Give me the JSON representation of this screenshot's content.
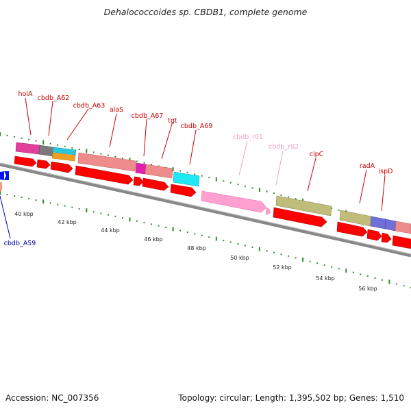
{
  "title": "Dehalococcoides sp. CBDB1, complete genome",
  "footer": {
    "accession": "Accession: NC_007356",
    "summary": "Topology: circular; Length: 1,395,502 bp; Genes: 1,510"
  },
  "colors": {
    "backbone": "#808080",
    "tick": "#2e8b2e",
    "gene_label": "#cc0000",
    "rna_label": "#f3a0c8",
    "blue_label": "#0000aa",
    "cds": "#ff0000",
    "rrna": "#ff9fcf"
  },
  "scale_labels": [
    "40 kbp",
    "42 kbp",
    "44 kbp",
    "46 kbp",
    "48 kbp",
    "50 kbp",
    "52 kbp",
    "54 kbp",
    "56 kbp"
  ],
  "gene_labels": [
    {
      "text": "holA",
      "color": "red"
    },
    {
      "text": "cbdb_A62",
      "color": "red"
    },
    {
      "text": "cbdb_A63",
      "color": "red"
    },
    {
      "text": "alaS",
      "color": "red"
    },
    {
      "text": "cbdb_A67",
      "color": "red"
    },
    {
      "text": "tgt",
      "color": "red"
    },
    {
      "text": "cbdb_A69",
      "color": "red"
    },
    {
      "text": "cbdb_r01",
      "color": "pink"
    },
    {
      "text": "cbdb_r02",
      "color": "pink"
    },
    {
      "text": "clpC",
      "color": "red"
    },
    {
      "text": "radA",
      "color": "red"
    },
    {
      "text": "ispD",
      "color": "red"
    },
    {
      "text": "cbdb_A59",
      "color": "blue"
    }
  ]
}
